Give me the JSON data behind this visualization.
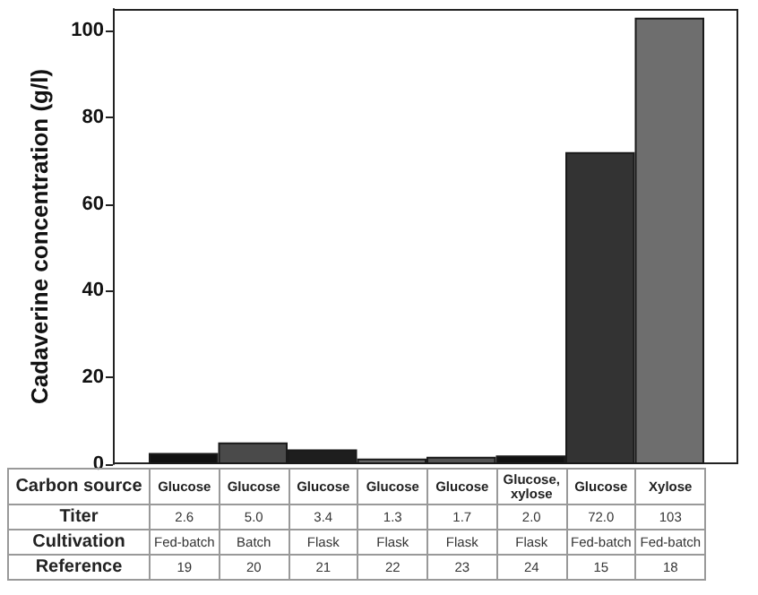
{
  "chart_data": {
    "type": "bar",
    "ylabel": "Cadaverine concentration (g/l)",
    "categories": [
      "Glucose",
      "Glucose",
      "Glucose",
      "Glucose",
      "Glucose",
      "Glucose, xylose",
      "Glucose",
      "Xylose"
    ],
    "values": [
      2.6,
      5.0,
      3.4,
      1.3,
      1.7,
      2.0,
      72.0,
      103
    ],
    "value_labels": [
      "2.6",
      "5.0",
      "3.4",
      "1.3",
      "1.7",
      "2.0",
      "72.0",
      "103"
    ],
    "colors": [
      "#111111",
      "#4a4a4a",
      "#1e1e1e",
      "#676767",
      "#555555",
      "#121212",
      "#333333",
      "#6e6e6e"
    ],
    "ylim": [
      0,
      105
    ],
    "yticks": [
      0,
      20,
      40,
      60,
      80,
      100
    ],
    "grid": false,
    "annotations": [
      "Carbon source",
      "Titer",
      "Cultivation",
      "Reference",
      "Fed-batch",
      "Batch",
      "Flask",
      "Flask",
      "Flask",
      "Flask",
      "Fed-batch",
      "Fed-batch",
      "19",
      "20",
      "21",
      "22",
      "23",
      "24",
      "15",
      "18"
    ]
  }
}
